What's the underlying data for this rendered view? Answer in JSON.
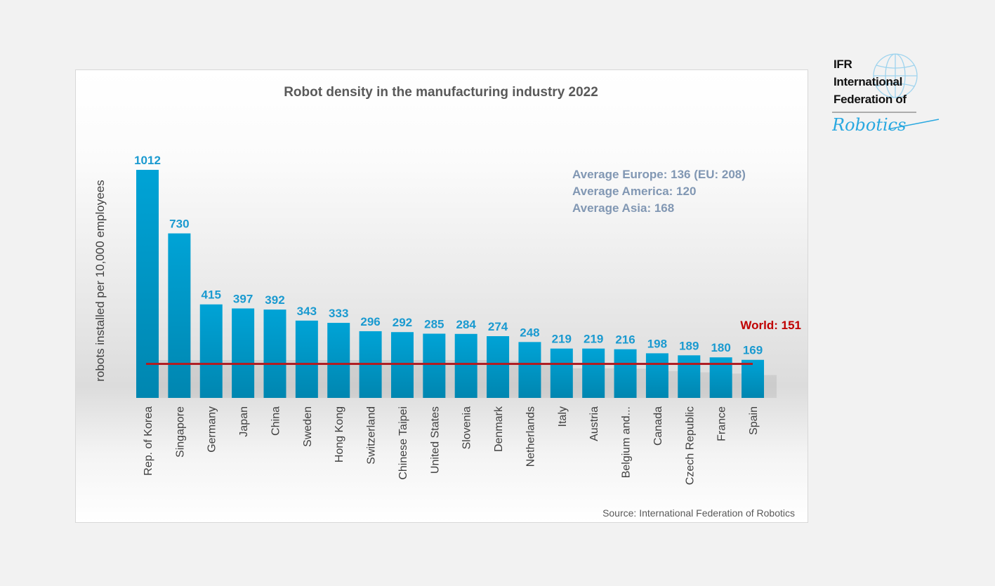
{
  "logo": {
    "line1": "IFR",
    "line2": "International",
    "line3": "Federation of",
    "line4": "Robotics"
  },
  "annotations": {
    "europe": "Average Europe: 136  (EU: 208)",
    "america": "Average America: 120",
    "asia": "Average Asia: 168",
    "world": "World: 151",
    "source": "Source: International Federation of Robotics"
  },
  "colors": {
    "bar": "#0099cc",
    "world_line": "#b01e23",
    "label": "#1a9ad0",
    "avg_text": "#8197b3"
  },
  "chart_data": {
    "type": "bar",
    "title": "Robot density in the manufacturing industry 2022",
    "xlabel": "",
    "ylabel": "robots installed per 10,000 employees",
    "categories": [
      "Rep. of Korea",
      "Singapore",
      "Germany",
      "Japan",
      "China",
      "Sweden",
      "Hong Kong",
      "Switzerland",
      "Chinese Taipei",
      "United States",
      "Slovenia",
      "Denmark",
      "Netherlands",
      "Italy",
      "Austria",
      "Belgium and...",
      "Canada",
      "Czech Republic",
      "France",
      "Spain"
    ],
    "values": [
      1012,
      730,
      415,
      397,
      392,
      343,
      333,
      296,
      292,
      285,
      284,
      274,
      248,
      219,
      219,
      216,
      198,
      189,
      180,
      169
    ],
    "reference_line": {
      "label": "World: 151",
      "value": 151
    },
    "ylim": [
      0,
      1012
    ],
    "grid": false,
    "data_labels": true
  }
}
